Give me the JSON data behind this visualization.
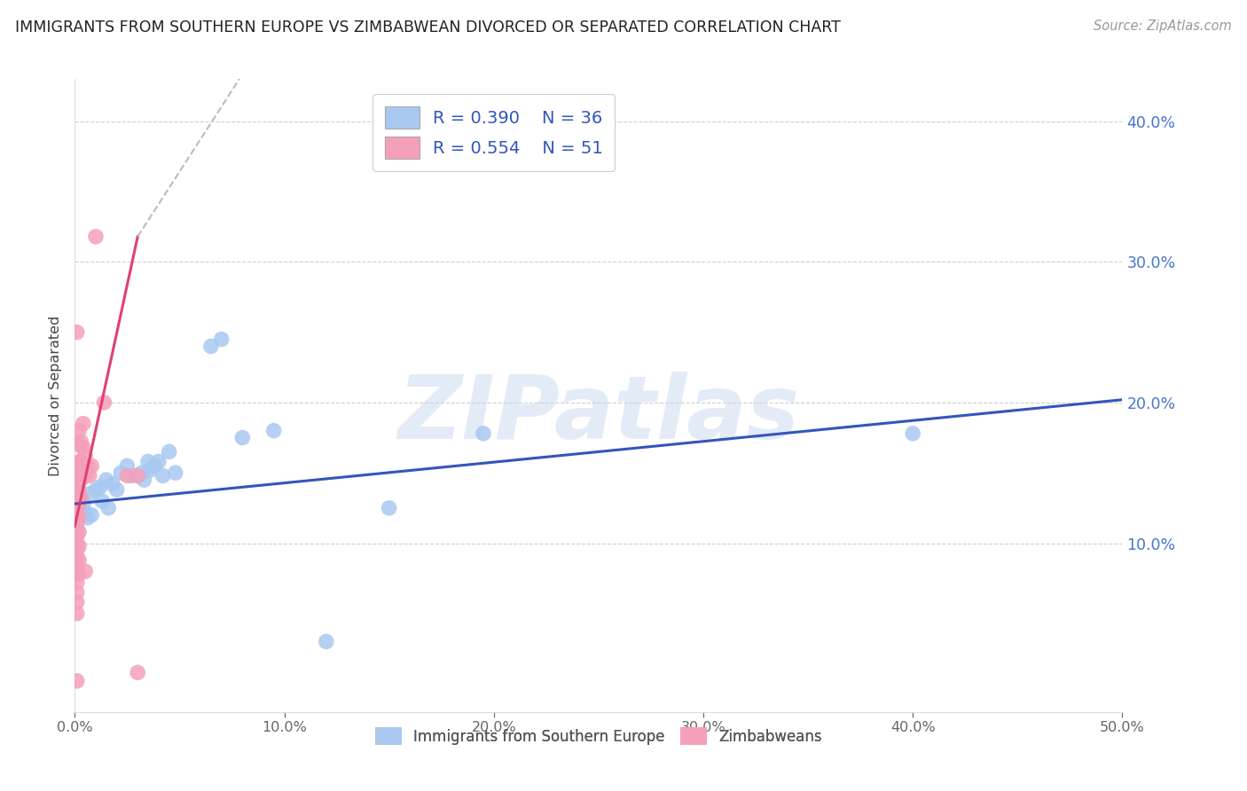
{
  "title": "IMMIGRANTS FROM SOUTHERN EUROPE VS ZIMBABWEAN DIVORCED OR SEPARATED CORRELATION CHART",
  "source": "Source: ZipAtlas.com",
  "ylabel": "Divorced or Separated",
  "blue_label": "Immigrants from Southern Europe",
  "pink_label": "Zimbabweans",
  "blue_R": "R = 0.390",
  "blue_N": "N = 36",
  "pink_R": "R = 0.554",
  "pink_N": "N = 51",
  "watermark": "ZIPatlas",
  "blue_color": "#A8C8F0",
  "pink_color": "#F4A0B8",
  "blue_line_color": "#3355BB",
  "pink_line_color": "#E04070",
  "axis_color": "#4477CC",
  "grid_color": "#CCCCCC",
  "xlim": [
    0.0,
    0.5
  ],
  "ylim": [
    -0.02,
    0.43
  ],
  "x_ticks": [
    0.0,
    0.1,
    0.2,
    0.3,
    0.4,
    0.5
  ],
  "x_tick_labels": [
    "0.0%",
    "10.0%",
    "20.0%",
    "30.0%",
    "40.0%",
    "50.0%"
  ],
  "y_ticks": [
    0.1,
    0.2,
    0.3,
    0.4
  ],
  "y_tick_labels": [
    "10.0%",
    "20.0%",
    "30.0%",
    "40.0%"
  ],
  "blue_scatter": [
    [
      0.001,
      0.13
    ],
    [
      0.002,
      0.125
    ],
    [
      0.003,
      0.132
    ],
    [
      0.004,
      0.128
    ],
    [
      0.005,
      0.122
    ],
    [
      0.006,
      0.118
    ],
    [
      0.007,
      0.135
    ],
    [
      0.008,
      0.12
    ],
    [
      0.01,
      0.138
    ],
    [
      0.012,
      0.14
    ],
    [
      0.013,
      0.13
    ],
    [
      0.015,
      0.145
    ],
    [
      0.016,
      0.125
    ],
    [
      0.018,
      0.142
    ],
    [
      0.02,
      0.138
    ],
    [
      0.022,
      0.15
    ],
    [
      0.025,
      0.155
    ],
    [
      0.027,
      0.148
    ],
    [
      0.03,
      0.148
    ],
    [
      0.032,
      0.15
    ],
    [
      0.033,
      0.145
    ],
    [
      0.035,
      0.158
    ],
    [
      0.036,
      0.152
    ],
    [
      0.038,
      0.155
    ],
    [
      0.04,
      0.158
    ],
    [
      0.042,
      0.148
    ],
    [
      0.045,
      0.165
    ],
    [
      0.048,
      0.15
    ],
    [
      0.065,
      0.24
    ],
    [
      0.07,
      0.245
    ],
    [
      0.08,
      0.175
    ],
    [
      0.095,
      0.18
    ],
    [
      0.12,
      0.03
    ],
    [
      0.15,
      0.125
    ],
    [
      0.195,
      0.178
    ],
    [
      0.4,
      0.178
    ]
  ],
  "pink_scatter": [
    [
      0.001,
      0.155
    ],
    [
      0.001,
      0.148
    ],
    [
      0.001,
      0.142
    ],
    [
      0.001,
      0.138
    ],
    [
      0.001,
      0.135
    ],
    [
      0.001,
      0.13
    ],
    [
      0.001,
      0.125
    ],
    [
      0.001,
      0.12
    ],
    [
      0.001,
      0.115
    ],
    [
      0.001,
      0.11
    ],
    [
      0.001,
      0.105
    ],
    [
      0.001,
      0.1
    ],
    [
      0.001,
      0.095
    ],
    [
      0.001,
      0.09
    ],
    [
      0.001,
      0.085
    ],
    [
      0.001,
      0.078
    ],
    [
      0.001,
      0.072
    ],
    [
      0.001,
      0.065
    ],
    [
      0.001,
      0.058
    ],
    [
      0.001,
      0.05
    ],
    [
      0.002,
      0.18
    ],
    [
      0.002,
      0.17
    ],
    [
      0.002,
      0.158
    ],
    [
      0.002,
      0.148
    ],
    [
      0.002,
      0.138
    ],
    [
      0.002,
      0.128
    ],
    [
      0.002,
      0.118
    ],
    [
      0.002,
      0.108
    ],
    [
      0.002,
      0.098
    ],
    [
      0.002,
      0.088
    ],
    [
      0.002,
      0.078
    ],
    [
      0.003,
      0.172
    ],
    [
      0.003,
      0.158
    ],
    [
      0.003,
      0.145
    ],
    [
      0.003,
      0.132
    ],
    [
      0.004,
      0.185
    ],
    [
      0.004,
      0.168
    ],
    [
      0.004,
      0.155
    ],
    [
      0.005,
      0.162
    ],
    [
      0.005,
      0.148
    ],
    [
      0.005,
      0.08
    ],
    [
      0.006,
      0.155
    ],
    [
      0.007,
      0.148
    ],
    [
      0.008,
      0.155
    ],
    [
      0.001,
      0.25
    ],
    [
      0.01,
      0.318
    ],
    [
      0.014,
      0.2
    ],
    [
      0.025,
      0.148
    ],
    [
      0.03,
      0.148
    ],
    [
      0.03,
      0.008
    ],
    [
      0.001,
      0.002
    ]
  ],
  "blue_trendline": [
    [
      0.0,
      0.128
    ],
    [
      0.5,
      0.202
    ]
  ],
  "pink_trendline_solid": [
    [
      0.0,
      0.112
    ],
    [
      0.03,
      0.318
    ]
  ],
  "pink_trendline_dashed": [
    [
      0.03,
      0.318
    ],
    [
      0.085,
      0.445
    ]
  ]
}
